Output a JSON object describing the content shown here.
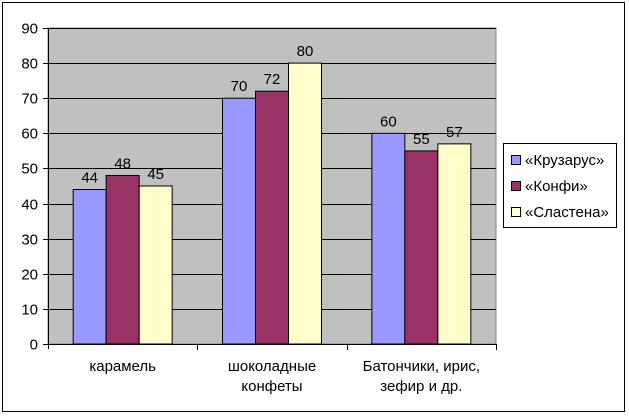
{
  "chart_data": {
    "type": "bar",
    "categories": [
      [
        "карамель"
      ],
      [
        "шоколадные",
        "конфеты"
      ],
      [
        "Батончики, ирис,",
        "зефир и др."
      ]
    ],
    "series": [
      {
        "name": "«Крузарус»",
        "color": "#9999ff",
        "values": [
          44,
          70,
          60
        ]
      },
      {
        "name": "«Конфи»",
        "color": "#993366",
        "values": [
          48,
          72,
          55
        ]
      },
      {
        "name": "«Сластена»",
        "color": "#ffffcc",
        "values": [
          45,
          80,
          57
        ]
      }
    ],
    "ylim": [
      0,
      90
    ],
    "yticks": [
      0,
      10,
      20,
      30,
      40,
      50,
      60,
      70,
      80,
      90
    ],
    "grid": true,
    "plot_background": "#c0c0c0",
    "legend_position": "right",
    "title": "",
    "xlabel": "",
    "ylabel": ""
  }
}
